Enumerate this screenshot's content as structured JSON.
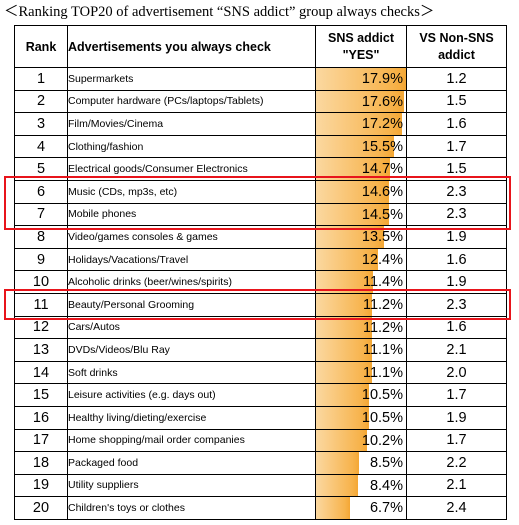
{
  "title": "＜Ranking TOP20 of advertisement “SNS addict” group always checks＞",
  "columns": {
    "rank": "Rank",
    "ad": "Advertisements you always check",
    "yes_line1": "SNS addict",
    "yes_line2": "\"YES\"",
    "vs_line1": "VS  Non-SNS",
    "vs_line2": "addict"
  },
  "colors": {
    "bar_light": "#fbd8a0",
    "bar_dark": "#f4a734",
    "highlight": "#e8141b"
  },
  "chart_data": {
    "type": "table",
    "title": "＜Ranking TOP20 of advertisement “SNS addict” group always checks＞",
    "max_percent": 17.9,
    "highlighted_ranks": [
      6,
      7,
      11
    ],
    "rows": [
      {
        "rank": "1",
        "ad": "Supermarkets",
        "yes": 17.9,
        "yes_label": "17.9%",
        "vs": "1.2"
      },
      {
        "rank": "2",
        "ad": "Computer hardware (PCs/laptops/Tablets)",
        "yes": 17.6,
        "yes_label": "17.6%",
        "vs": "1.5"
      },
      {
        "rank": "3",
        "ad": "Film/Movies/Cinema",
        "yes": 17.2,
        "yes_label": "17.2%",
        "vs": "1.6"
      },
      {
        "rank": "4",
        "ad": "Clothing/fashion",
        "yes": 15.5,
        "yes_label": "15.5%",
        "vs": "1.7"
      },
      {
        "rank": "5",
        "ad": "Electrical goods/Consumer Electronics",
        "yes": 14.7,
        "yes_label": "14.7%",
        "vs": "1.5"
      },
      {
        "rank": "6",
        "ad": "Music (CDs, mp3s, etc)",
        "yes": 14.6,
        "yes_label": "14.6%",
        "vs": "2.3"
      },
      {
        "rank": "7",
        "ad": "Mobile phones",
        "yes": 14.5,
        "yes_label": "14.5%",
        "vs": "2.3"
      },
      {
        "rank": "8",
        "ad": "Video/games consoles & games",
        "yes": 13.5,
        "yes_label": "13.5%",
        "vs": "1.9"
      },
      {
        "rank": "9",
        "ad": "Holidays/Vacations/Travel",
        "yes": 12.4,
        "yes_label": "12.4%",
        "vs": "1.6"
      },
      {
        "rank": "10",
        "ad": "Alcoholic drinks (beer/wines/spirits)",
        "yes": 11.4,
        "yes_label": "11.4%",
        "vs": "1.9"
      },
      {
        "rank": "11",
        "ad": "Beauty/Personal Grooming",
        "yes": 11.2,
        "yes_label": "11.2%",
        "vs": "2.3"
      },
      {
        "rank": "12",
        "ad": "Cars/Autos",
        "yes": 11.2,
        "yes_label": "11.2%",
        "vs": "1.6"
      },
      {
        "rank": "13",
        "ad": "DVDs/Videos/Blu Ray",
        "yes": 11.1,
        "yes_label": "11.1%",
        "vs": "2.1"
      },
      {
        "rank": "14",
        "ad": "Soft drinks",
        "yes": 11.1,
        "yes_label": "11.1%",
        "vs": "2.0"
      },
      {
        "rank": "15",
        "ad": "Leisure activities (e.g. days out)",
        "yes": 10.5,
        "yes_label": "10.5%",
        "vs": "1.7"
      },
      {
        "rank": "16",
        "ad": "Healthy living/dieting/exercise",
        "yes": 10.5,
        "yes_label": "10.5%",
        "vs": "1.9"
      },
      {
        "rank": "17",
        "ad": "Home shopping/mail order companies",
        "yes": 10.2,
        "yes_label": "10.2%",
        "vs": "1.7"
      },
      {
        "rank": "18",
        "ad": "Packaged food",
        "yes": 8.5,
        "yes_label": "8.5%",
        "vs": "2.2"
      },
      {
        "rank": "19",
        "ad": "Utility suppliers",
        "yes": 8.4,
        "yes_label": "8.4%",
        "vs": "2.1"
      },
      {
        "rank": "20",
        "ad": "Children's toys or clothes",
        "yes": 6.7,
        "yes_label": "6.7%",
        "vs": "2.4"
      }
    ]
  }
}
